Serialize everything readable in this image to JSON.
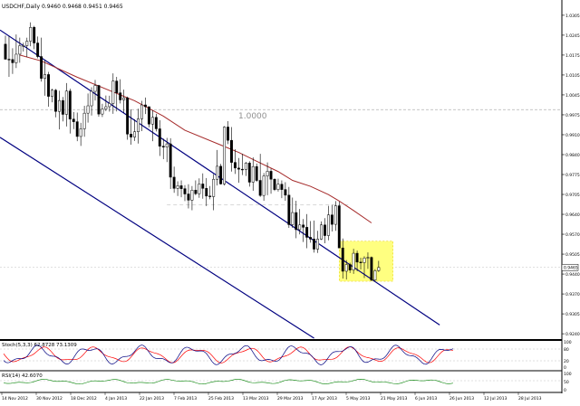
{
  "chart_window": {
    "title": "USDCHF,Daily  0.9460 0.9468 0.9451 0.9465",
    "price_label": "1.0000",
    "current_price": "0.9465"
  },
  "chart_data": [
    {
      "type": "candlestick",
      "symbol": "USDCHF",
      "timeframe": "Daily",
      "ohlc_header": {
        "open": 0.946,
        "high": 0.9468,
        "low": 0.9451,
        "close": 0.9465
      },
      "x_tick_labels": [
        "14 Nov 2012",
        "30 Nov 2012",
        "18 Dec 2012",
        "4 Jan 2013",
        "22 Jan 2013",
        "7 Feb 2013",
        "25 Feb 2013",
        "13 Mar 2013",
        "29 Mar 2013",
        "17 Apr 2013",
        "5 May 2013",
        "21 May 2013",
        "6 Jun 2013",
        "26 Jun 2013",
        "12 Jul 2013",
        "28 Jul 2013"
      ],
      "y_tick_labels": [
        "1.0305",
        "1.0245",
        "1.0175",
        "1.0105",
        "1.0045",
        "0.9975",
        "0.9910",
        "0.9840",
        "0.9775",
        "0.9705",
        "0.9640",
        "0.9570",
        "0.9505",
        "0.9440",
        "0.9370",
        "0.9305",
        "0.9240"
      ],
      "y_range": [
        0.9225,
        1.0335
      ],
      "x_range": [
        0,
        140
      ],
      "level_line": 1.0,
      "current_price": 0.9465,
      "moving_average_color": "#a52a2a",
      "channel_color": "#000080",
      "highlight_color": "#ffff80",
      "candles": [
        [
          100,
          1.0222,
          1.0251,
          1.017,
          1.0171
        ],
        [
          101,
          1.0171,
          1.025,
          1.0111,
          1.017
        ],
        [
          102,
          1.017,
          1.0208,
          1.0121,
          1.0159
        ],
        [
          103,
          1.0159,
          1.0255,
          1.0141,
          1.0188
        ],
        [
          104,
          1.0188,
          1.0244,
          1.0159,
          1.0217
        ],
        [
          105,
          1.0217,
          1.0227,
          1.0197,
          1.0217
        ],
        [
          106,
          1.0217,
          1.0244,
          1.0179,
          1.0232
        ],
        [
          107,
          1.0232,
          1.0296,
          1.0215,
          1.0279
        ],
        [
          108,
          1.0279,
          1.0284,
          1.0205,
          1.0226
        ],
        [
          109,
          1.0226,
          1.0248,
          1.0174,
          1.018
        ],
        [
          110,
          1.018,
          1.0244,
          1.0095,
          1.0106
        ],
        [
          111,
          1.0106,
          1.0167,
          1.0047,
          1.0119
        ],
        [
          112,
          1.0119,
          1.0128,
          1.001,
          1.0045
        ],
        [
          113,
          1.0045,
          1.0071,
          1.0025,
          1.0066
        ],
        [
          114,
          1.0066,
          1.007,
          0.9974,
          0.9994
        ],
        [
          115,
          0.9994,
          1.0064,
          0.9933,
          1.0031
        ],
        [
          116,
          1.0031,
          1.0043,
          0.996,
          0.9984
        ],
        [
          117,
          0.9984,
          1.009,
          0.9943,
          1.0063
        ],
        [
          118,
          1.0063,
          1.0071,
          0.9919,
          0.9968
        ],
        [
          119,
          0.9968,
          0.9992,
          0.9934,
          0.9959
        ],
        [
          120,
          0.9959,
          0.999,
          0.9893,
          0.9909
        ],
        [
          121,
          0.9909,
          0.9955,
          0.9877,
          0.9935
        ],
        [
          122,
          0.9935,
          1.0013,
          0.9908,
          0.9988
        ],
        [
          123,
          0.9988,
          1.0055,
          0.9956,
          1.0013
        ],
        [
          124,
          1.0013,
          1.0076,
          0.998,
          1.0062
        ],
        [
          125,
          1.0062,
          1.0101,
          1.0031,
          1.0082
        ],
        [
          126,
          1.0082,
          1.0084,
          0.9976,
          0.9985
        ],
        [
          127,
          0.9985,
          1.002,
          0.9975,
          1.0002
        ],
        [
          128,
          1.0002,
          1.0048,
          0.9995,
          1.001
        ],
        [
          129,
          1.001,
          1.0047,
          0.9993,
          1.0021
        ],
        [
          130,
          1.0021,
          1.0123,
          0.9986,
          1.0097
        ],
        [
          131,
          1.0097,
          1.0111,
          0.9994,
          1.0057
        ],
        [
          132,
          1.0057,
          1.0103,
          1.0021,
          1.0033
        ],
        [
          133,
          1.0033,
          1.0068,
          0.999,
          1.004
        ],
        [
          134,
          1.004,
          1.0044,
          0.9898,
          0.9917
        ],
        [
          135,
          0.9917,
          1.0001,
          0.9881,
          0.9907
        ],
        [
          136,
          0.9907,
          0.9967,
          0.9894,
          0.9925
        ],
        [
          137,
          0.9925,
          1.0003,
          0.9885,
          0.9969
        ],
        [
          138,
          0.9969,
          1.003,
          0.9927,
          1.0016
        ],
        [
          139,
          1.0016,
          1.0041,
          0.9985,
          1.001
        ],
        [
          140,
          1.001,
          1.001,
          0.994,
          0.9951
        ],
        [
          141,
          0.9951,
          0.9998,
          0.9893,
          0.9974
        ],
        [
          142,
          0.9974,
          0.9986,
          0.9926,
          0.9935
        ],
        [
          143,
          0.9935,
          0.9964,
          0.9843,
          0.9876
        ],
        [
          144,
          0.9876,
          0.9902,
          0.9832,
          0.9873
        ],
        [
          145,
          0.9873,
          0.9904,
          0.9822,
          0.9884
        ],
        [
          146,
          0.9884,
          0.9903,
          0.9731,
          0.9771
        ],
        [
          147,
          0.9771,
          0.9807,
          0.9718,
          0.9733
        ],
        [
          148,
          0.9733,
          0.9757,
          0.9707,
          0.9742
        ],
        [
          149,
          0.9742,
          0.976,
          0.9703,
          0.9732
        ],
        [
          150,
          0.9732,
          0.9744,
          0.969,
          0.9714
        ],
        [
          151,
          0.9714,
          0.9747,
          0.9665,
          0.9693
        ],
        [
          152,
          0.9693,
          0.9741,
          0.9659,
          0.9727
        ],
        [
          153,
          0.9727,
          0.976,
          0.971,
          0.9715
        ],
        [
          154,
          0.9715,
          0.9767,
          0.9701,
          0.9748
        ],
        [
          155,
          0.9748,
          0.9784,
          0.9698,
          0.9733
        ],
        [
          156,
          0.9733,
          0.9768,
          0.9673,
          0.9707
        ],
        [
          157,
          0.9707,
          0.9741,
          0.9696,
          0.9705
        ],
        [
          158,
          0.9705,
          0.9781,
          0.9659,
          0.9764
        ],
        [
          159,
          0.9764,
          0.9863,
          0.9743,
          0.9808
        ],
        [
          160,
          0.9808,
          0.9816,
          0.9746,
          0.9748
        ],
        [
          161,
          0.9748,
          0.9944,
          0.9743,
          0.9941
        ],
        [
          162,
          0.9941,
          0.9961,
          0.9883,
          0.9896
        ],
        [
          163,
          0.9896,
          0.9941,
          0.979,
          0.9821
        ],
        [
          164,
          0.9821,
          0.9866,
          0.9782,
          0.9802
        ],
        [
          165,
          0.9802,
          0.9836,
          0.9752,
          0.9798
        ],
        [
          166,
          0.9798,
          0.985,
          0.9778,
          0.9797
        ],
        [
          167,
          0.9797,
          0.9823,
          0.9775,
          0.9819
        ],
        [
          168,
          0.9819,
          0.9825,
          0.9739,
          0.9754
        ],
        [
          169,
          0.9754,
          0.9838,
          0.9725,
          0.9807
        ],
        [
          170,
          0.9807,
          0.9817,
          0.9755,
          0.976
        ],
        [
          171,
          0.976,
          0.985,
          0.9704,
          0.9709
        ],
        [
          172,
          0.9709,
          0.9785,
          0.9691,
          0.9775
        ],
        [
          173,
          0.9775,
          0.9821,
          0.971,
          0.9791
        ],
        [
          174,
          0.9791,
          0.98,
          0.9715,
          0.9764
        ],
        [
          175,
          0.9764,
          0.9767,
          0.9724,
          0.9729
        ],
        [
          176,
          0.9729,
          0.9766,
          0.9722,
          0.9747
        ],
        [
          177,
          0.9747,
          0.976,
          0.97,
          0.9729
        ],
        [
          178,
          0.9729,
          0.9754,
          0.9691,
          0.971
        ],
        [
          179,
          0.971,
          0.9738,
          0.9599,
          0.961
        ],
        [
          180,
          0.961,
          0.9702,
          0.9599,
          0.9651
        ],
        [
          181,
          0.9651,
          0.9691,
          0.9564,
          0.9593
        ],
        [
          182,
          0.9593,
          0.9663,
          0.9577,
          0.9609
        ],
        [
          183,
          0.9609,
          0.9629,
          0.9551,
          0.9601
        ],
        [
          184,
          0.9601,
          0.9646,
          0.953,
          0.9567
        ],
        [
          185,
          0.9567,
          0.9622,
          0.9549,
          0.9561
        ],
        [
          186,
          0.9561,
          0.9624,
          0.9515,
          0.9527
        ],
        [
          187,
          0.9527,
          0.9589,
          0.9514,
          0.9561
        ],
        [
          188,
          0.9561,
          0.9621,
          0.9558,
          0.9609
        ],
        [
          189,
          0.9609,
          0.9632,
          0.9547,
          0.9573
        ],
        [
          190,
          0.9573,
          0.9674,
          0.9557,
          0.9643
        ],
        [
          191,
          0.9643,
          0.9677,
          0.9587,
          0.9611
        ],
        [
          192,
          0.9611,
          0.969,
          0.9589,
          0.9674
        ],
        [
          193,
          0.9674,
          0.9688,
          0.9531,
          0.9531
        ],
        [
          194,
          0.9531,
          0.9563,
          0.9427,
          0.9452
        ],
        [
          195,
          0.9452,
          0.949,
          0.9424,
          0.9475
        ],
        [
          196,
          0.9475,
          0.9481,
          0.9446,
          0.9456
        ],
        [
          197,
          0.9456,
          0.9528,
          0.9443,
          0.9513
        ],
        [
          198,
          0.9513,
          0.9522,
          0.9452,
          0.9483
        ],
        [
          199,
          0.9483,
          0.9498,
          0.9458,
          0.9481
        ],
        [
          200,
          0.9481,
          0.9503,
          0.9429,
          0.9497
        ],
        [
          201,
          0.9497,
          0.9516,
          0.946,
          0.9499
        ],
        [
          202,
          0.9499,
          0.9502,
          0.9418,
          0.9422
        ],
        [
          203,
          0.9422,
          0.9459,
          0.9417,
          0.9454
        ],
        [
          204,
          0.9454,
          0.9487,
          0.945,
          0.9465
        ]
      ],
      "moving_average": [
        [
          104,
          1.0185
        ],
        [
          110,
          1.0165
        ],
        [
          120,
          1.011
        ],
        [
          130,
          1.006
        ],
        [
          136,
          1.003
        ],
        [
          144,
          0.9978
        ],
        [
          150,
          0.993
        ],
        [
          160,
          0.988
        ],
        [
          165,
          0.9855
        ],
        [
          170,
          0.9825
        ],
        [
          176,
          0.979
        ],
        [
          180,
          0.976
        ],
        [
          185,
          0.974
        ],
        [
          190,
          0.9712
        ],
        [
          193,
          0.969
        ],
        [
          197,
          0.9658
        ],
        [
          202,
          0.9616
        ]
      ],
      "channel_upper": [
        [
          100,
          1.027
        ],
        [
          221,
          0.927
        ]
      ],
      "channel_lower": [
        [
          100,
          0.9906
        ],
        [
          186,
          0.9225
        ]
      ],
      "support_line": [
        [
          145,
          0.9678
        ],
        [
          196,
          0.9678
        ]
      ],
      "highlight_zone": {
        "x_start": 193,
        "x_end": 208,
        "y_low": 0.9418,
        "y_high": 0.9554
      },
      "stochastic": {
        "title": "Stoch(5,3,3) 62.8728 73.1309",
        "ticks": [
          "100",
          "80",
          "20",
          "0"
        ],
        "colors": {
          "main": "#000080",
          "signal": "#ff0000"
        }
      },
      "rsi": {
        "title": "RSI(14) 42.6070",
        "ticks": [
          "100",
          "50",
          "0"
        ],
        "colors": {
          "main": "#008000"
        }
      }
    }
  ]
}
